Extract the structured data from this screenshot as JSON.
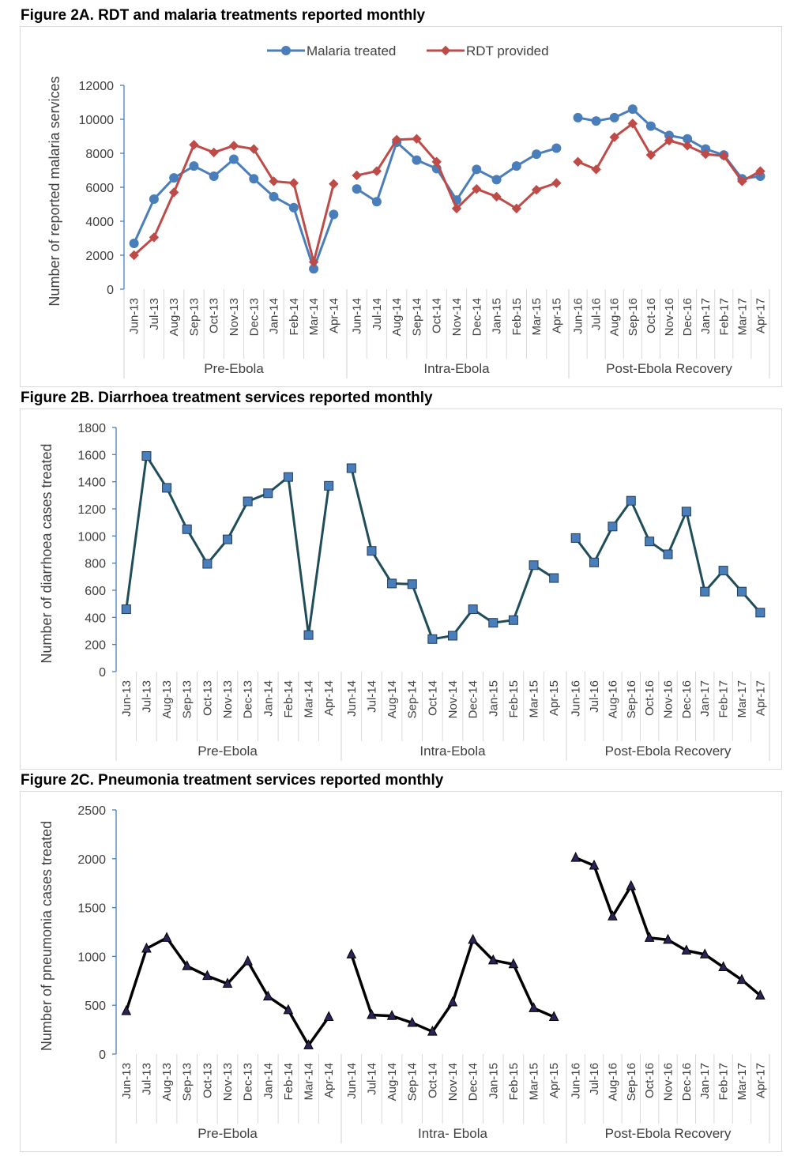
{
  "figures": [
    {
      "title": "Figure 2A. RDT and malaria treatments reported monthly"
    },
    {
      "title": "Figure 2B. Diarrhoea treatment services reported monthly"
    },
    {
      "title": "Figure 2C. Pneumonia treatment services reported monthly"
    }
  ],
  "chart_data": [
    {
      "type": "line",
      "title": "Figure 2A. RDT and malaria treatments reported monthly",
      "ylabel": "Number of reported malaria services",
      "xlabel": "",
      "ylim": [
        0,
        12000
      ],
      "yticks": [
        0,
        2000,
        4000,
        6000,
        8000,
        10000,
        12000
      ],
      "legend_position": "top",
      "groups": [
        {
          "label": "Pre-Ebola",
          "categories": [
            "Jun-13",
            "Jul-13",
            "Aug-13",
            "Sep-13",
            "Oct-13",
            "Nov-13",
            "Dec-13",
            "Jan-14",
            "Feb-14",
            "Mar-14",
            "Apr-14"
          ]
        },
        {
          "label": "Intra-Ebola",
          "categories": [
            "Jun-14",
            "Jul-14",
            "Aug-14",
            "Sep-14",
            "Oct-14",
            "Nov-14",
            "Dec-14",
            "Jan-15",
            "Feb-15",
            "Mar-15",
            "Apr-15"
          ]
        },
        {
          "label": "Post-Ebola Recovery",
          "categories": [
            "Jun-16",
            "Jul-16",
            "Aug-16",
            "Sep-16",
            "Oct-16",
            "Nov-16",
            "Dec-16",
            "Jan-17",
            "Feb-17",
            "Mar-17",
            "Apr-17"
          ]
        }
      ],
      "series": [
        {
          "name": "Malaria treated",
          "color": "#4a7ebb",
          "marker": "circle",
          "values": [
            [
              2700,
              5300,
              6550,
              7250,
              6650,
              7650,
              6500,
              5450,
              4800,
              1200,
              4400
            ],
            [
              5900,
              5150,
              8650,
              7600,
              7100,
              5250,
              7050,
              6450,
              7250,
              7950,
              8300
            ],
            [
              10100,
              9900,
              10100,
              10600,
              9600,
              9050,
              8850,
              8250,
              7900,
              6500,
              6650
            ]
          ]
        },
        {
          "name": "RDT provided",
          "color": "#be4b48",
          "marker": "diamond",
          "values": [
            [
              2000,
              3050,
              5700,
              8500,
              8050,
              8450,
              8250,
              6350,
              6250,
              1600,
              6200
            ],
            [
              6700,
              6950,
              8800,
              8850,
              7500,
              4750,
              5900,
              5450,
              4750,
              5850,
              6250
            ],
            [
              7500,
              7050,
              8950,
              9750,
              7900,
              8750,
              8450,
              7950,
              7850,
              6350,
              6950
            ]
          ]
        }
      ]
    },
    {
      "type": "line",
      "title": "Figure 2B. Diarrhoea treatment services reported monthly",
      "ylabel": "Number of diarrhoea cases treated",
      "xlabel": "",
      "ylim": [
        0,
        1800
      ],
      "yticks": [
        0,
        200,
        400,
        600,
        800,
        1000,
        1200,
        1400,
        1600,
        1800
      ],
      "groups": [
        {
          "label": "Pre-Ebola",
          "categories": [
            "Jun-13",
            "Jul-13",
            "Aug-13",
            "Sep-13",
            "Oct-13",
            "Nov-13",
            "Dec-13",
            "Jan-14",
            "Feb-14",
            "Mar-14",
            "Apr-14"
          ]
        },
        {
          "label": "Intra-Ebola",
          "categories": [
            "Jun-14",
            "Jul-14",
            "Aug-14",
            "Sep-14",
            "Oct-14",
            "Nov-14",
            "Dec-14",
            "Jan-15",
            "Feb-15",
            "Mar-15",
            "Apr-15"
          ]
        },
        {
          "label": "Post-Ebola Recovery",
          "categories": [
            "Jun-16",
            "Jul-16",
            "Aug-16",
            "Sep-16",
            "Oct-16",
            "Nov-16",
            "Dec-16",
            "Jan-17",
            "Feb-17",
            "Mar-17",
            "Apr-17"
          ]
        }
      ],
      "series": [
        {
          "name": "",
          "color": "#1f4e5a",
          "marker_fill": "#4a7ebb",
          "marker": "square",
          "values": [
            [
              460,
              1590,
              1355,
              1050,
              795,
              975,
              1255,
              1315,
              1435,
              270,
              1370
            ],
            [
              1500,
              890,
              650,
              645,
              240,
              265,
              460,
              360,
              380,
              785,
              690
            ],
            [
              985,
              805,
              1070,
              1260,
              960,
              865,
              1180,
              590,
              745,
              590,
              435
            ]
          ]
        }
      ]
    },
    {
      "type": "line",
      "title": "Figure 2C. Pneumonia treatment services reported monthly",
      "ylabel": "Number of pneumonia cases treated",
      "xlabel": "",
      "ylim": [
        0,
        2500
      ],
      "yticks": [
        0,
        500,
        1000,
        1500,
        2000,
        2500
      ],
      "groups": [
        {
          "label": "Pre-Ebola",
          "categories": [
            "Jun-13",
            "Jul-13",
            "Aug-13",
            "Sep-13",
            "Oct-13",
            "Nov-13",
            "Dec-13",
            "Jan-14",
            "Feb-14",
            "Mar-14",
            "Apr-14"
          ]
        },
        {
          "label": "Intra- Ebola",
          "categories": [
            "Jun-14",
            "Jul-14",
            "Aug-14",
            "Sep-14",
            "Oct-14",
            "Nov-14",
            "Dec-14",
            "Jan-15",
            "Feb-15",
            "Mar-15",
            "Apr-15"
          ]
        },
        {
          "label": "Post-Ebola Recovery",
          "categories": [
            "Jun-16",
            "Jul-16",
            "Aug-16",
            "Sep-16",
            "Oct-16",
            "Nov-16",
            "Dec-16",
            "Jan-17",
            "Feb-17",
            "Mar-17",
            "Apr-17"
          ]
        }
      ],
      "series": [
        {
          "name": "",
          "color": "#000000",
          "marker_fill": "#2b2355",
          "marker": "triangle",
          "values": [
            [
              440,
              1080,
              1190,
              900,
              800,
              720,
              950,
              590,
              450,
              90,
              380
            ],
            [
              1020,
              400,
              390,
              320,
              230,
              530,
              1170,
              960,
              920,
              470,
              380
            ],
            [
              2010,
              1930,
              1410,
              1720,
              1190,
              1170,
              1060,
              1020,
              890,
              760,
              600
            ]
          ]
        }
      ]
    }
  ]
}
